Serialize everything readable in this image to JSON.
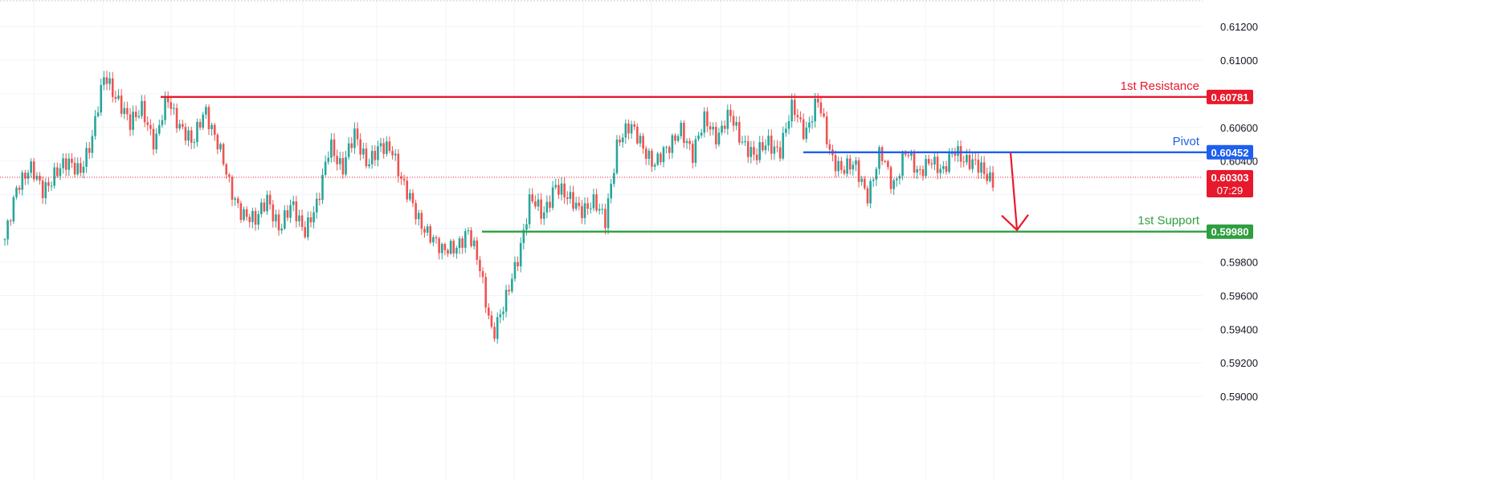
{
  "chart_data": {
    "type": "candlestick",
    "y_axis": {
      "ticks": [
        "0.61200",
        "0.61000",
        "0.60600",
        "0.60400",
        "0.59800",
        "0.59600",
        "0.59400",
        "0.59200",
        "0.59000"
      ],
      "tick_values": [
        0.612,
        0.61,
        0.606,
        0.604,
        0.598,
        0.596,
        0.594,
        0.592,
        0.59
      ],
      "ylim": [
        0.5895,
        0.6135
      ]
    },
    "levels": [
      {
        "label": "1st Resistance",
        "value": 0.60781,
        "value_label": "0.60781",
        "color": "#e8192c"
      },
      {
        "label": "Pivot",
        "value": 0.60452,
        "value_label": "0.60452",
        "color": "#1e5ff0"
      },
      {
        "label": "1st Support",
        "value": 0.5998,
        "value_label": "0.59980",
        "color": "#2e9e3e"
      }
    ],
    "current_price": {
      "value": 0.60303,
      "value_label": "0.60303",
      "countdown": "07:29",
      "color": "#e8192c"
    },
    "projection_arrow": {
      "from_value": 0.6045,
      "to_value": 0.5998,
      "color": "#e8192c"
    },
    "price_path": [
      0.5991,
      0.6028,
      0.6035,
      0.6022,
      0.6034,
      0.6037,
      0.6036,
      0.6053,
      0.6092,
      0.6078,
      0.606,
      0.6074,
      0.6048,
      0.6078,
      0.6062,
      0.6048,
      0.6073,
      0.605,
      0.6024,
      0.601,
      0.6002,
      0.602,
      0.5998,
      0.6014,
      0.6,
      0.6012,
      0.6053,
      0.6034,
      0.6056,
      0.604,
      0.6046,
      0.6048,
      0.6023,
      0.6005,
      0.5998,
      0.5984,
      0.599,
      0.5998,
      0.5975,
      0.5938,
      0.5954,
      0.5983,
      0.6018,
      0.6006,
      0.6028,
      0.6016,
      0.6012,
      0.6016,
      0.6003,
      0.6054,
      0.6059,
      0.605,
      0.6038,
      0.6046,
      0.6062,
      0.6041,
      0.6068,
      0.6053,
      0.6067,
      0.6053,
      0.604,
      0.6053,
      0.6046,
      0.6072,
      0.6058,
      0.6075,
      0.6045,
      0.6035,
      0.6036,
      0.6021,
      0.6044,
      0.6025,
      0.6047,
      0.603,
      0.6044,
      0.6031,
      0.6048,
      0.604,
      0.6034,
      0.603
    ]
  },
  "colors": {
    "up": "#26a69a",
    "down": "#ef5350",
    "grid": "#f0f3fa",
    "axis_text": "#131722"
  }
}
